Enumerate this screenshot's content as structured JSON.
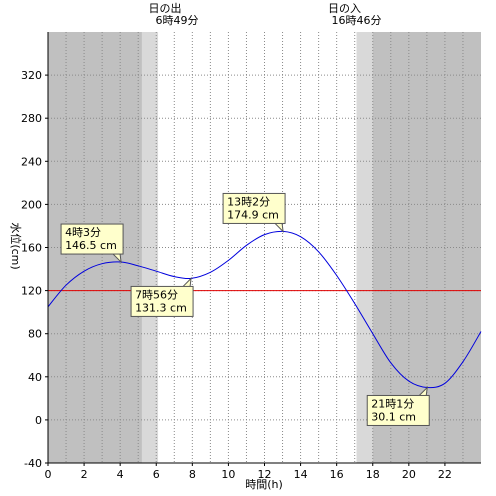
{
  "chart_data": {
    "type": "line",
    "title": "",
    "xlabel": "時間(h)",
    "ylabel": "水位(cm)",
    "xlim": [
      0,
      24
    ],
    "ylim": [
      -40,
      360
    ],
    "x_ticks": [
      0,
      2,
      4,
      6,
      8,
      10,
      12,
      14,
      16,
      18,
      20,
      22
    ],
    "y_ticks": [
      -40,
      0,
      40,
      80,
      120,
      160,
      200,
      240,
      280,
      320
    ],
    "grid": true,
    "reference_line": {
      "y": 120,
      "color": "#e00000"
    },
    "series_color": "#0000dd",
    "sunrise": {
      "label": "日の出",
      "time": "6時49分",
      "hour": 6.82
    },
    "sunset": {
      "label": "日の入",
      "time": "16時46分",
      "hour": 16.77
    },
    "shading": {
      "night_color": "#c0c0c0",
      "twilight_color": "#d9d9d9",
      "day_color": "#ffffff",
      "morning_twilight": [
        5.2,
        6.1
      ],
      "evening_twilight": [
        17.1,
        18.0
      ]
    },
    "series": [
      {
        "x": [
          0,
          1,
          2,
          3,
          4.05,
          5,
          6,
          7,
          7.93,
          9,
          10,
          11,
          12,
          13.03,
          14,
          15,
          16,
          17,
          18,
          19,
          20,
          21.02,
          22,
          23,
          24
        ],
        "values": [
          105,
          125,
          138,
          145,
          146.5,
          143,
          138,
          133,
          131.3,
          137,
          148,
          162,
          172,
          174.9,
          170,
          156,
          134,
          108,
          80,
          53,
          36,
          30.1,
          34,
          54,
          82
        ]
      }
    ],
    "annotations": [
      {
        "time": "4時3分",
        "value": "146.5 cm",
        "x": 4.05,
        "y": 146.5,
        "place": "upper-left"
      },
      {
        "time": "7時56分",
        "value": "131.3 cm",
        "x": 7.93,
        "y": 131.3,
        "place": "lower-left"
      },
      {
        "time": "13時2分",
        "value": "174.9 cm",
        "x": 13.03,
        "y": 174.9,
        "place": "upper-left"
      },
      {
        "time": "21時1分",
        "value": "30.1 cm",
        "x": 21.02,
        "y": 30.1,
        "place": "lower-left"
      }
    ]
  }
}
